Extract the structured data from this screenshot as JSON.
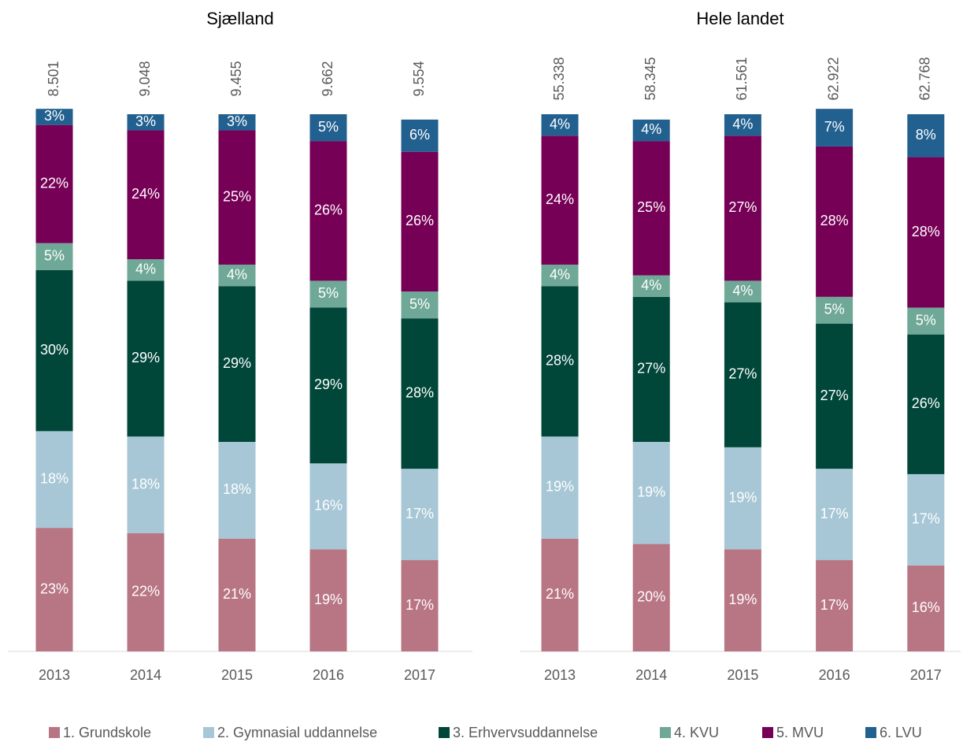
{
  "chart_data": [
    {
      "type": "bar",
      "stacked": true,
      "title": "Sjælland",
      "categories": [
        "2013",
        "2014",
        "2015",
        "2016",
        "2017"
      ],
      "totals": {
        "values": [
          8501,
          9048,
          9455,
          9662,
          9554
        ],
        "value_labels": [
          "8.501",
          "9.048",
          "9.455",
          "9.662",
          "9.554"
        ]
      },
      "ylim": [
        0,
        100
      ],
      "series": [
        {
          "name": "1. Grundskole",
          "color": "#b87584",
          "values": [
            23,
            22,
            21,
            19,
            17
          ],
          "value_labels": [
            "23%",
            "22%",
            "21%",
            "19%",
            "17%"
          ]
        },
        {
          "name": "2. Gymnasial uddannelse",
          "color": "#a7c7d6",
          "values": [
            18,
            18,
            18,
            16,
            17
          ],
          "value_labels": [
            "18%",
            "18%",
            "18%",
            "16%",
            "17%"
          ]
        },
        {
          "name": "3. Erhvervsuddannelse",
          "color": "#00473a",
          "values": [
            30,
            29,
            29,
            29,
            28
          ],
          "value_labels": [
            "30%",
            "29%",
            "29%",
            "29%",
            "28%"
          ]
        },
        {
          "name": "4. KVU",
          "color": "#6fa896",
          "values": [
            5,
            4,
            4,
            5,
            5
          ],
          "value_labels": [
            "5%",
            "4%",
            "4%",
            "5%",
            "5%"
          ]
        },
        {
          "name": "5. MVU",
          "color": "#760056",
          "values": [
            22,
            24,
            25,
            26,
            26
          ],
          "value_labels": [
            "22%",
            "24%",
            "25%",
            "26%",
            "26%"
          ]
        },
        {
          "name": "6. LVU",
          "color": "#22608f",
          "values": [
            3,
            3,
            3,
            5,
            6
          ],
          "value_labels": [
            "3%",
            "3%",
            "3%",
            "5%",
            "6%"
          ]
        }
      ]
    },
    {
      "type": "bar",
      "stacked": true,
      "title": "Hele landet",
      "categories": [
        "2013",
        "2014",
        "2015",
        "2016",
        "2017"
      ],
      "totals": {
        "values": [
          55338,
          58345,
          61561,
          62922,
          62768
        ],
        "value_labels": [
          "55.338",
          "58.345",
          "61.561",
          "62.922",
          "62.768"
        ]
      },
      "ylim": [
        0,
        100
      ],
      "series": [
        {
          "color": "#b87584",
          "values": [
            21,
            20,
            19,
            17,
            16
          ],
          "value_labels": [
            "21%",
            "20%",
            "19%",
            "17%",
            "16%"
          ]
        },
        {
          "color": "#a7c7d6",
          "values": [
            19,
            19,
            19,
            17,
            17
          ],
          "value_labels": [
            "19%",
            "19%",
            "19%",
            "17%",
            "17%"
          ]
        },
        {
          "color": "#00473a",
          "values": [
            28,
            27,
            27,
            27,
            26
          ],
          "value_labels": [
            "28%",
            "27%",
            "27%",
            "27%",
            "26%"
          ]
        },
        {
          "color": "#6fa896",
          "values": [
            4,
            4,
            4,
            5,
            5
          ],
          "value_labels": [
            "4%",
            "4%",
            "4%",
            "5%",
            "5%"
          ]
        },
        {
          "color": "#760056",
          "values": [
            24,
            25,
            27,
            28,
            28
          ],
          "value_labels": [
            "24%",
            "25%",
            "27%",
            "28%",
            "28%"
          ]
        },
        {
          "color": "#22608f",
          "values": [
            4,
            4,
            4,
            7,
            8
          ],
          "value_labels": [
            "4%",
            "4%",
            "4%",
            "7%",
            "8%"
          ]
        }
      ]
    }
  ]
}
